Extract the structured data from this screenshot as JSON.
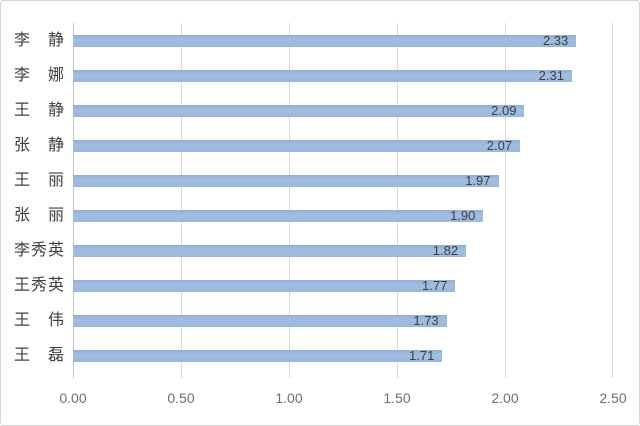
{
  "chart_data": {
    "type": "bar",
    "orientation": "horizontal",
    "title": "",
    "xlabel": "",
    "ylabel": "",
    "categories": [
      "李静",
      "李娜",
      "王静",
      "张静",
      "王丽",
      "张丽",
      "李秀英",
      "王秀英",
      "王伟",
      "王磊"
    ],
    "values": [
      2.33,
      2.31,
      2.09,
      2.07,
      1.97,
      1.9,
      1.82,
      1.77,
      1.73,
      1.71
    ],
    "value_labels": [
      "2.33",
      "2.31",
      "2.09",
      "2.07",
      "1.97",
      "1.90",
      "1.82",
      "1.77",
      "1.73",
      "1.71"
    ],
    "x_ticks": [
      "0.00",
      "0.50",
      "1.00",
      "1.50",
      "2.00",
      "2.50"
    ],
    "xlim": [
      0,
      2.5
    ],
    "grid": true,
    "legend": "none",
    "value_label_position": "inside-end",
    "bar_color": "#9bb8dd",
    "gridline_color": "#d9d9d9",
    "category_label_color": "#3f3f3f",
    "value_label_color": "#3f3f3f",
    "tick_label_color": "#68707a",
    "background_color": "#ffffff"
  }
}
